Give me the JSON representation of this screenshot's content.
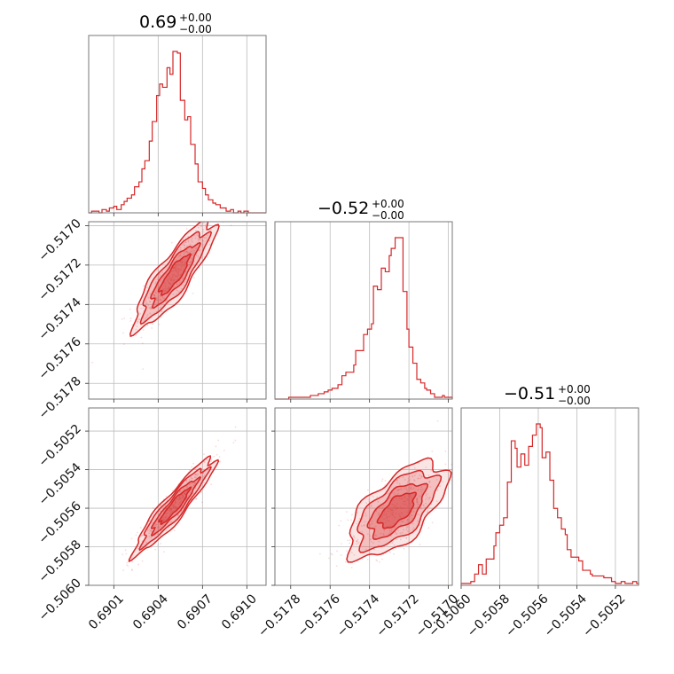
{
  "chart_data": {
    "type": "corner",
    "color": "#d62728",
    "grid": true,
    "parameters": [
      {
        "title": {
          "value": "0.69",
          "plus": "+0.00",
          "minus": "−0.00"
        },
        "range": [
          0.68993,
          0.69113
        ],
        "ticks": [
          0.6901,
          0.6904,
          0.6907,
          0.691
        ],
        "tick_labels": [
          "0.6901",
          "0.6904",
          "0.6907",
          "0.6910"
        ]
      },
      {
        "title": {
          "value": "−0.52",
          "plus": "+0.00",
          "minus": "−0.00"
        },
        "range": [
          -0.51788,
          -0.51698
        ],
        "ticks": [
          -0.5178,
          -0.5176,
          -0.5174,
          -0.5172,
          -0.517
        ],
        "tick_labels": [
          "−0.5178",
          "−0.5176",
          "−0.5174",
          "−0.5172",
          "−0.5170"
        ]
      },
      {
        "title": {
          "value": "−0.51",
          "plus": "+0.00",
          "minus": "−0.00"
        },
        "range": [
          -0.506,
          -0.50508
        ],
        "ticks": [
          -0.506,
          -0.5058,
          -0.5056,
          -0.5054,
          -0.5052
        ],
        "tick_labels": [
          "−0.5060",
          "−0.5058",
          "−0.5056",
          "−0.5054",
          "−0.5052"
        ]
      }
    ],
    "histograms": [
      {
        "param": 0,
        "bins": [
          0.68993,
          0.68995,
          0.68998,
          0.69,
          0.69002,
          0.69005,
          0.69007,
          0.6901,
          0.69012,
          0.69015,
          0.69017,
          0.69019,
          0.69022,
          0.69024,
          0.69027,
          0.69029,
          0.69031,
          0.69034,
          0.69036,
          0.69039,
          0.69041,
          0.69043,
          0.69046,
          0.69048,
          0.6905,
          0.69053,
          0.69055,
          0.69058,
          0.6906,
          0.69062,
          0.69065,
          0.69067,
          0.6907,
          0.69072,
          0.69074,
          0.69077,
          0.69079,
          0.69082,
          0.69084,
          0.69086,
          0.69089,
          0.69091,
          0.69094,
          0.69096,
          0.69098,
          0.69101,
          0.69103,
          0.69106,
          0.69108,
          0.6911,
          0.69113
        ],
        "counts": [
          0,
          1,
          1,
          0,
          2,
          1,
          3,
          4,
          2,
          5,
          7,
          9,
          11,
          16,
          19,
          27,
          32,
          44,
          56,
          72,
          79,
          77,
          89,
          85,
          99,
          98,
          69,
          57,
          59,
          42,
          30,
          19,
          15,
          11,
          8,
          6,
          5,
          3,
          3,
          1,
          2,
          0,
          1,
          0,
          1,
          0,
          0,
          0,
          0,
          0
        ]
      },
      {
        "param": 1,
        "bins": [
          -0.51788,
          -0.51786,
          -0.51784,
          -0.51783,
          -0.51781,
          -0.51779,
          -0.51777,
          -0.51775,
          -0.51774,
          -0.51772,
          -0.5177,
          -0.51768,
          -0.51766,
          -0.51765,
          -0.51763,
          -0.51761,
          -0.51759,
          -0.51757,
          -0.51756,
          -0.51754,
          -0.51752,
          -0.5175,
          -0.51748,
          -0.51747,
          -0.51745,
          -0.51743,
          -0.51741,
          -0.51739,
          -0.51738,
          -0.51736,
          -0.51734,
          -0.51732,
          -0.5173,
          -0.51729,
          -0.51727,
          -0.51725,
          -0.51723,
          -0.51721,
          -0.5172,
          -0.51718,
          -0.51716,
          -0.51714,
          -0.51712,
          -0.51711,
          -0.51709,
          -0.51707,
          -0.51705,
          -0.51703,
          -0.51702,
          -0.517,
          -0.51698
        ],
        "counts": [
          0,
          0,
          0,
          0,
          1,
          1,
          1,
          1,
          1,
          1,
          2,
          2,
          3,
          3,
          4,
          5,
          6,
          6,
          8,
          13,
          15,
          15,
          19,
          27,
          27,
          36,
          39,
          42,
          63,
          61,
          73,
          71,
          80,
          84,
          90,
          90,
          60,
          39,
          29,
          20,
          11,
          9,
          6,
          5,
          3,
          1,
          1,
          2,
          1,
          1
        ]
      },
      {
        "param": 2,
        "bins": [
          -0.506,
          -0.50598,
          -0.50596,
          -0.50595,
          -0.50593,
          -0.50591,
          -0.50589,
          -0.50587,
          -0.50585,
          -0.50583,
          -0.50582,
          -0.5058,
          -0.50578,
          -0.50576,
          -0.50574,
          -0.50572,
          -0.50571,
          -0.50569,
          -0.50567,
          -0.50565,
          -0.50563,
          -0.50561,
          -0.50559,
          -0.50558,
          -0.50556,
          -0.50554,
          -0.50552,
          -0.5055,
          -0.50548,
          -0.50546,
          -0.50545,
          -0.50543,
          -0.50541,
          -0.50539,
          -0.50537,
          -0.50535,
          -0.50533,
          -0.50532,
          -0.5053,
          -0.50528,
          -0.50526,
          -0.50524,
          -0.50522,
          -0.5052,
          -0.50519,
          -0.50517,
          -0.50515,
          -0.50513,
          -0.50511,
          -0.50509,
          -0.50508
        ],
        "counts": [
          1,
          1,
          1,
          2,
          6,
          11,
          6,
          14,
          14,
          21,
          28,
          32,
          36,
          55,
          77,
          73,
          63,
          70,
          64,
          74,
          80,
          86,
          84,
          68,
          71,
          56,
          41,
          36,
          30,
          27,
          19,
          15,
          15,
          13,
          8,
          8,
          6,
          5,
          5,
          5,
          4,
          4,
          2,
          1,
          1,
          2,
          1,
          1,
          2,
          1
        ]
      }
    ],
    "contour_panels": [
      {
        "xparam": 0,
        "yparam": 1,
        "center": [
          0.69051,
          -0.51725
        ],
        "sigma": [
          0.00011,
          0.00011
        ],
        "rho": 0.86
      },
      {
        "xparam": 0,
        "yparam": 2,
        "center": [
          0.69051,
          -0.50559
        ],
        "sigma": [
          0.00011,
          0.0001
        ],
        "rho": 0.93
      },
      {
        "xparam": 1,
        "yparam": 2,
        "center": [
          -0.51726,
          -0.50561
        ],
        "sigma": [
          0.0001,
          0.0001
        ],
        "rho": 0.64
      }
    ]
  }
}
